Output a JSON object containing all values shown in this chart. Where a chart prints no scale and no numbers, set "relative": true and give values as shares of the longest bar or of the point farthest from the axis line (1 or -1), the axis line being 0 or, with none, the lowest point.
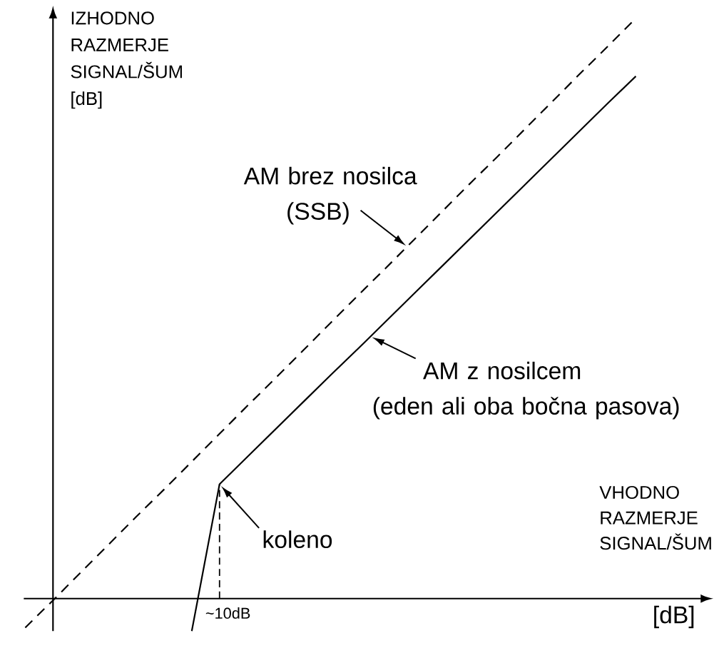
{
  "chart_data": {
    "type": "line",
    "xlabel": "VHODNO RAZMERJE SIGNAL/ŠUM",
    "ylabel": "IZHODNO RAZMERJE SIGNAL/ŠUM [dB]",
    "relative": true,
    "marker": "none",
    "categories": [
      null,
      null,
      null,
      null,
      null,
      null,
      null,
      null,
      null,
      null,
      null,
      null,
      null,
      null,
      null,
      null,
      null,
      null,
      null,
      null,
      null,
      null,
      null
    ],
    "series": [
      {
        "name": "AM brez nosilca (SSB)",
        "color": "#000000",
        "line_style": "dashed",
        "values": [
          -0.05,
          -0.003,
          0.045,
          0.093,
          0.141,
          0.188,
          0.236,
          0.284,
          0.332,
          0.379,
          0.427,
          0.475,
          0.523,
          0.57,
          0.618,
          0.666,
          0.714,
          0.761,
          0.809,
          0.857,
          0.905,
          0.952,
          1.0
        ]
      },
      {
        "name": "AM z nosilcem (eden ali oba bočna pasova)",
        "color": "#000000",
        "line_style": "solid",
        "values": [
          null,
          null,
          null,
          null,
          null,
          null,
          -0.056,
          0.197,
          0.244,
          0.291,
          0.338,
          0.385,
          0.431,
          0.478,
          0.525,
          0.572,
          0.619,
          0.666,
          0.713,
          0.76,
          0.807,
          0.854,
          0.9
        ]
      }
    ],
    "annotations": [
      "koleno",
      "~10dB",
      "[dB]"
    ]
  }
}
